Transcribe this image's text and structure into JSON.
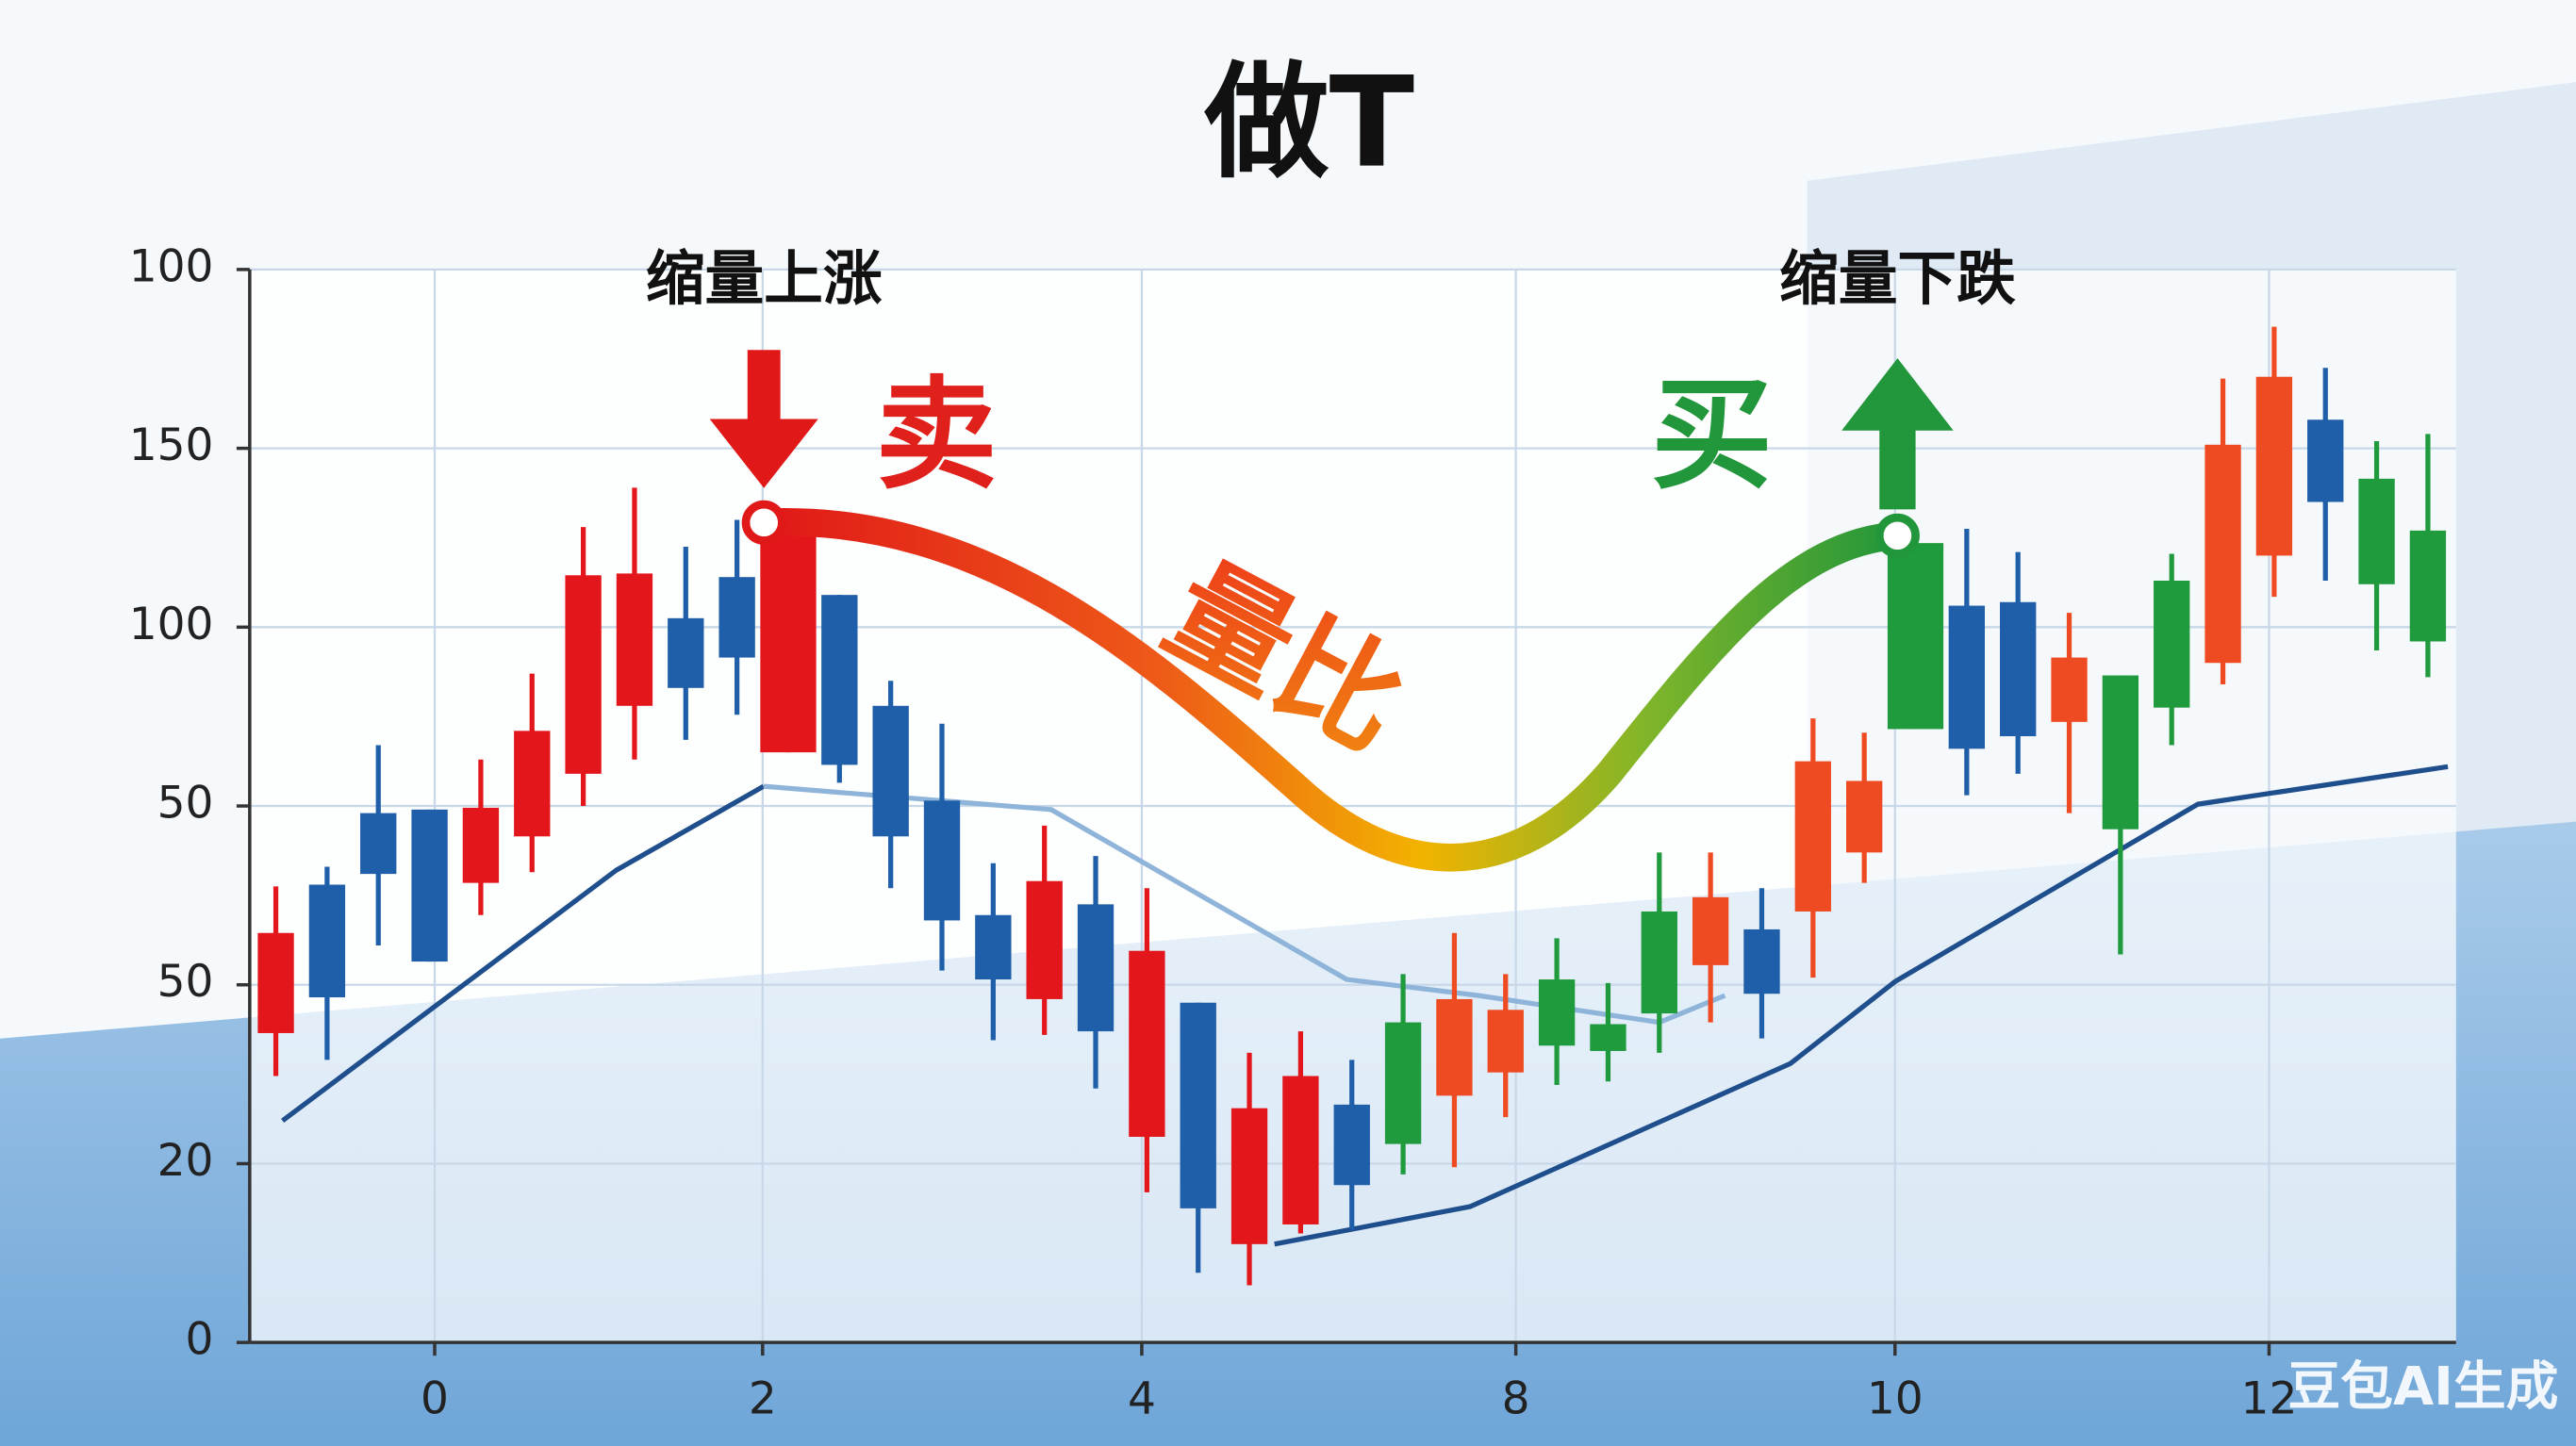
{
  "chart_data": {
    "type": "candlestick",
    "title": "做T",
    "annotations": {
      "left_label": "缩量上涨",
      "right_label": "缩量下跌",
      "sell": "卖",
      "buy": "买",
      "ratio": "量比"
    },
    "x": [
      0,
      1,
      2,
      3,
      4,
      5,
      6,
      7,
      8,
      9,
      10,
      11,
      12,
      13,
      14,
      15,
      16,
      17,
      18,
      19,
      20,
      21,
      22,
      23,
      24,
      25,
      26,
      27,
      28,
      29,
      30,
      31,
      32,
      33,
      34,
      35,
      36,
      37,
      38,
      39,
      40,
      41,
      42
    ],
    "open": [
      1.73,
      2.56,
      2.96,
      2.98,
      2.57,
      2.83,
      3.18,
      3.56,
      4.05,
      4.28,
      3.3,
      4.18,
      3.56,
      3.03,
      2.39,
      1.92,
      2.45,
      1.15,
      1.9,
      0.55,
      0.66,
      1.33,
      1.79,
      1.38,
      1.51,
      2.03,
      1.78,
      2.41,
      2.11,
      2.31,
      2.41,
      2.74,
      4.47,
      4.12,
      4.14,
      3.47,
      3.73,
      4.26,
      3.8,
      4.4,
      5.16,
      4.83,
      4.54
    ],
    "high": [
      2.55,
      2.66,
      3.34,
      2.98,
      3.26,
      3.74,
      4.56,
      4.78,
      4.45,
      4.6,
      4.54,
      4.18,
      3.7,
      3.46,
      2.68,
      2.89,
      2.72,
      2.54,
      1.9,
      1.62,
      1.74,
      1.58,
      2.06,
      2.29,
      2.06,
      2.26,
      2.01,
      2.74,
      2.74,
      2.54,
      3.49,
      3.41,
      4.56,
      4.55,
      4.42,
      4.08,
      3.73,
      4.41,
      5.39,
      5.68,
      5.45,
      5.04,
      5.08
    ],
    "low": [
      1.49,
      1.58,
      2.22,
      2.13,
      2.39,
      2.63,
      3.0,
      3.26,
      3.37,
      3.51,
      3.3,
      3.13,
      2.54,
      2.08,
      1.69,
      1.72,
      1.42,
      0.84,
      0.39,
      0.32,
      0.61,
      0.63,
      0.94,
      0.98,
      1.26,
      1.44,
      1.46,
      1.62,
      1.79,
      1.7,
      2.04,
      2.57,
      3.43,
      3.06,
      3.18,
      2.96,
      2.17,
      3.34,
      3.68,
      4.17,
      4.26,
      3.87,
      3.72
    ],
    "close": [
      2.29,
      1.93,
      2.62,
      2.13,
      2.99,
      3.42,
      4.29,
      4.3,
      3.66,
      3.83,
      4.54,
      3.23,
      2.83,
      2.36,
      2.03,
      2.58,
      1.74,
      2.19,
      0.75,
      1.31,
      1.49,
      0.88,
      1.11,
      1.92,
      1.86,
      1.66,
      1.63,
      1.84,
      2.49,
      1.95,
      3.25,
      3.14,
      3.43,
      3.32,
      3.39,
      3.83,
      2.87,
      3.55,
      5.02,
      5.4,
      4.7,
      4.24,
      3.92
    ],
    "candle_colors": [
      "#e3161c",
      "#1f5ea8",
      "#1f5ea8",
      "#1f5ea8",
      "#e3161c",
      "#e3161c",
      "#e3161c",
      "#e3161c",
      "#1f5ea8",
      "#1f5ea8",
      "#e3161c",
      "#1f5ea8",
      "#1f5ea8",
      "#1f5ea8",
      "#1f5ea8",
      "#e3161c",
      "#1f5ea8",
      "#e3161c",
      "#1f5ea8",
      "#e3161c",
      "#e3161c",
      "#1f5ea8",
      "#1f9a3d",
      "#ef4b22",
      "#ef4b22",
      "#1f9a3d",
      "#1f9a3d",
      "#1f9a3d",
      "#ef4b22",
      "#1f5ea8",
      "#ef4b22",
      "#ef4b22",
      "#1f9a3d",
      "#1f5ea8",
      "#1f5ea8",
      "#ef4b22",
      "#1f9a3d",
      "#1f9a3d",
      "#ef4b22",
      "#ef4b22",
      "#1f5ea8",
      "#1f9a3d",
      "#1f9a3d"
    ],
    "series": [
      {
        "color": "#1f4e8c",
        "x": [
          0.13,
          6.64,
          9.52,
          null,
          19.49,
          23.31,
          29.56,
          31.61,
          37.51,
          42.39
        ],
        "values": [
          1.24,
          2.64,
          3.11,
          null,
          0.55,
          0.76,
          1.56,
          2.02,
          3.01,
          3.22
        ]
      },
      {
        "color": "#8fb4d9",
        "x": [
          9.52,
          15.13,
          20.9,
          23.47,
          27.0,
          28.28
        ],
        "values": [
          3.11,
          2.98,
          2.03,
          1.94,
          1.79,
          1.94
        ]
      }
    ],
    "xlim": [
      -0.51,
      42.55
    ],
    "ylim": [
      0,
      6
    ],
    "xticks": [
      {
        "value": 3.1,
        "label": "0"
      },
      {
        "value": 9.5,
        "label": "2"
      },
      {
        "value": 16.9,
        "label": "4"
      },
      {
        "value": 24.2,
        "label": "8"
      },
      {
        "value": 31.6,
        "label": "10"
      },
      {
        "value": 38.9,
        "label": "12"
      }
    ],
    "yticks": [
      {
        "value": 0,
        "label": "0"
      },
      {
        "value": 1,
        "label": "20"
      },
      {
        "value": 2,
        "label": "50"
      },
      {
        "value": 3,
        "label": "50"
      },
      {
        "value": 4,
        "label": "100"
      },
      {
        "value": 5,
        "label": "150"
      },
      {
        "value": 6,
        "label": "100"
      }
    ],
    "grid": true
  },
  "watermark": "豆包AI生成"
}
